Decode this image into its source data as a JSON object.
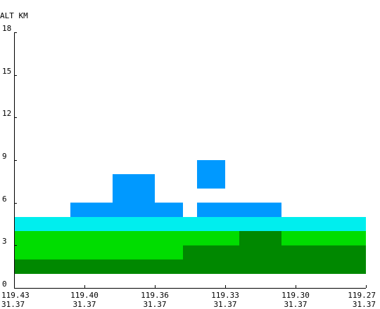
{
  "chart_data": {
    "type": "heatmap",
    "ylabel": "ALT KM",
    "ylim": [
      0,
      18
    ],
    "y_ticks": [
      "0",
      "3",
      "6",
      "9",
      "12",
      "15",
      "18"
    ],
    "x_ticks": [
      {
        "lon": "119.43",
        "lat": "31.37"
      },
      {
        "lon": "119.40",
        "lat": "31.37"
      },
      {
        "lon": "119.36",
        "lat": "31.37"
      },
      {
        "lon": "119.33",
        "lat": "31.37"
      },
      {
        "lon": "119.30",
        "lat": "31.37"
      },
      {
        "lon": "119.27",
        "lat": "31.37"
      }
    ],
    "x_columns": 25,
    "colors": {
      "dark_green": "#008800",
      "green": "#00dd00",
      "cyan": "#00eeee",
      "blue": "#0099ff",
      "axis": "#000000"
    },
    "cells": [
      {
        "color": "dark_green",
        "col_start": 0,
        "col_end": 25,
        "alt_bottom": 1,
        "alt_top": 2
      },
      {
        "color": "dark_green",
        "col_start": 12,
        "col_end": 25,
        "alt_bottom": 2,
        "alt_top": 3
      },
      {
        "color": "dark_green",
        "col_start": 16,
        "col_end": 19,
        "alt_bottom": 3,
        "alt_top": 4
      },
      {
        "color": "green",
        "col_start": 0,
        "col_end": 12,
        "alt_bottom": 2,
        "alt_top": 3
      },
      {
        "color": "green",
        "col_start": 0,
        "col_end": 16,
        "alt_bottom": 3,
        "alt_top": 4
      },
      {
        "color": "green",
        "col_start": 19,
        "col_end": 25,
        "alt_bottom": 3,
        "alt_top": 4
      },
      {
        "color": "cyan",
        "col_start": 0,
        "col_end": 25,
        "alt_bottom": 4,
        "alt_top": 5
      },
      {
        "color": "blue",
        "col_start": 4,
        "col_end": 12,
        "alt_bottom": 5,
        "alt_top": 6
      },
      {
        "color": "blue",
        "col_start": 13,
        "col_end": 19,
        "alt_bottom": 5,
        "alt_top": 6
      },
      {
        "color": "blue",
        "col_start": 7,
        "col_end": 10,
        "alt_bottom": 6,
        "alt_top": 8
      },
      {
        "color": "blue",
        "col_start": 13,
        "col_end": 15,
        "alt_bottom": 7,
        "alt_top": 9
      }
    ]
  }
}
